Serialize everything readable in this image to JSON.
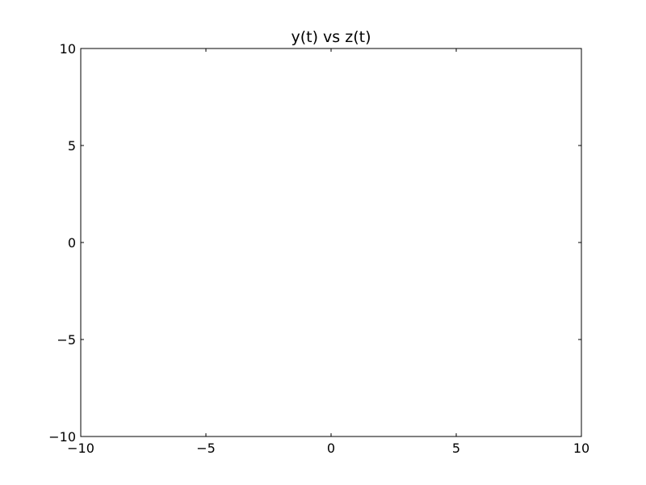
{
  "chart_data": {
    "type": "line",
    "title": "y(t) vs z(t)",
    "xlabel": "",
    "ylabel": "",
    "xlim": [
      -10,
      10
    ],
    "ylim": [
      -10,
      10
    ],
    "x_ticks": [
      -10,
      -5,
      0,
      5,
      10
    ],
    "y_ticks": [
      -10,
      -5,
      0,
      5,
      10
    ],
    "x_tick_labels": [
      "−10",
      "−5",
      "0",
      "5",
      "10"
    ],
    "y_tick_labels": [
      "−10",
      "−5",
      "0",
      "5",
      "10"
    ],
    "grid": false,
    "legend": "none",
    "series": []
  },
  "colors": {
    "background": "#ffffff",
    "axes": "#000000"
  }
}
